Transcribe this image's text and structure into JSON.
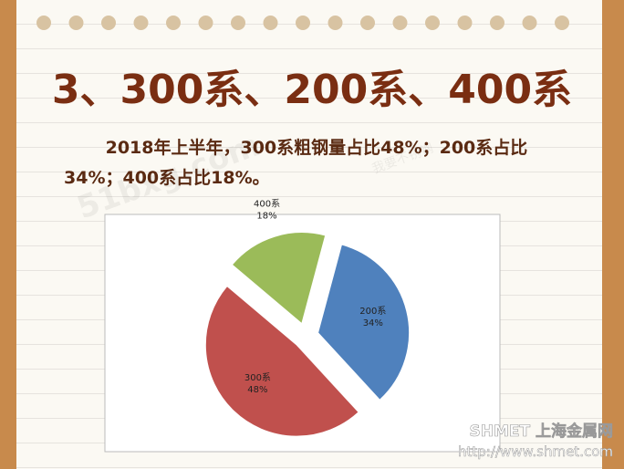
{
  "header": {
    "title": "3、300系、200系、400系",
    "text": "2018年上半年，300系粗钢量占比48%；200系占比34%；400系占比18%。"
  },
  "chart_data": {
    "type": "pie",
    "categories": [
      "200系",
      "300系",
      "400系"
    ],
    "values": [
      34,
      48,
      18
    ],
    "value_labels": [
      "34%",
      "48%",
      "18%"
    ],
    "colors": [
      "#4f81bd",
      "#c0504d",
      "#9bbb59"
    ]
  },
  "watermark": {
    "site": "51bxg.com",
    "slogan": "我要不锈钢",
    "brand": "SHMET 上海金属网",
    "url": "http://www.shmet.com"
  }
}
